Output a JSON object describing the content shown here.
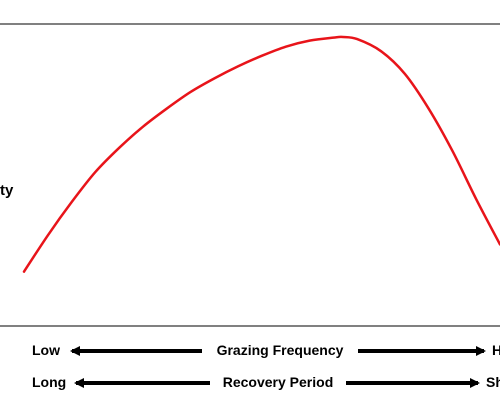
{
  "chart_data": {
    "type": "line",
    "title": "",
    "xlabel": "",
    "ylabel": "ty",
    "grid": false,
    "legend": "none",
    "colors": {
      "curve": "#e8141a",
      "axis": "#000000",
      "text": "#000000"
    },
    "xlim": [
      0,
      100
    ],
    "ylim": [
      0,
      100
    ],
    "series": [
      {
        "x": [
          0,
          5,
          10,
          15,
          20,
          25,
          30,
          35,
          40,
          45,
          50,
          55,
          60,
          65,
          67,
          70,
          75,
          80,
          85,
          90,
          95,
          100
        ],
        "values": [
          18,
          30,
          41,
          51,
          59,
          66,
          72,
          77.5,
          82,
          86,
          89.5,
          92.5,
          94.5,
          95.5,
          95.7,
          95,
          91,
          83.5,
          72,
          58,
          42,
          27
        ]
      }
    ],
    "scale_rows": [
      {
        "left": "Low",
        "center": "Grazing Frequency",
        "right": "H"
      },
      {
        "left": "Long",
        "center": "Recovery Period",
        "right": "Sh"
      }
    ]
  }
}
